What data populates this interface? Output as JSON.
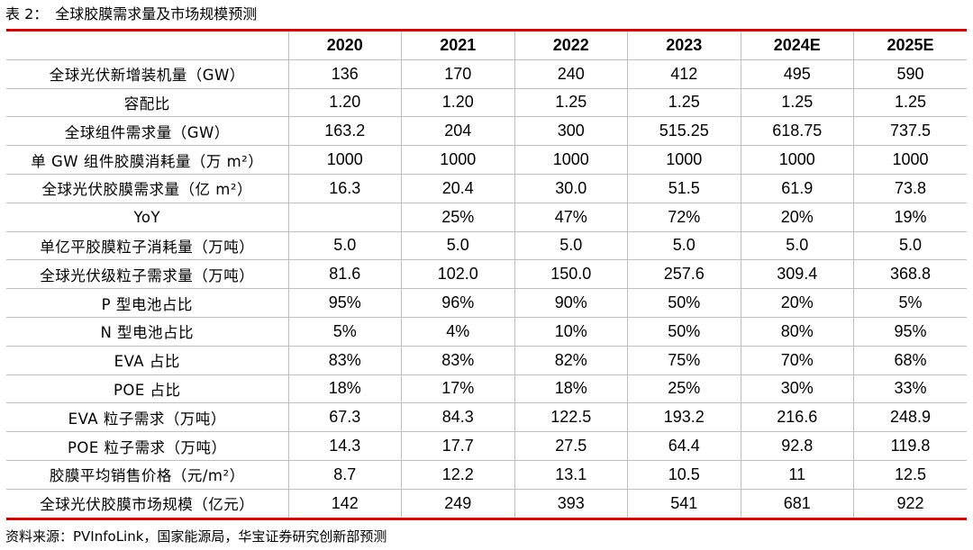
{
  "caption": {
    "label": "表 2：",
    "title": "全球胶膜需求量及市场规模预测"
  },
  "table": {
    "columns": [
      "",
      "2020",
      "2021",
      "2022",
      "2023",
      "2024E",
      "2025E"
    ],
    "rows": [
      {
        "label": "全球光伏新增装机量（GW）",
        "values": [
          "136",
          "170",
          "240",
          "412",
          "495",
          "590"
        ]
      },
      {
        "label": "容配比",
        "values": [
          "1.20",
          "1.20",
          "1.25",
          "1.25",
          "1.25",
          "1.25"
        ]
      },
      {
        "label": "全球组件需求量（GW）",
        "values": [
          "163.2",
          "204",
          "300",
          "515.25",
          "618.75",
          "737.5"
        ]
      },
      {
        "label": "单 GW 组件胶膜消耗量（万 m²）",
        "values": [
          "1000",
          "1000",
          "1000",
          "1000",
          "1000",
          "1000"
        ]
      },
      {
        "label": "全球光伏胶膜需求量（亿 m²）",
        "values": [
          "16.3",
          "20.4",
          "30.0",
          "51.5",
          "61.9",
          "73.8"
        ]
      },
      {
        "label": "YoY",
        "values": [
          "",
          "25%",
          "47%",
          "72%",
          "20%",
          "19%"
        ]
      },
      {
        "label": "单亿平胶膜粒子消耗量（万吨）",
        "values": [
          "5.0",
          "5.0",
          "5.0",
          "5.0",
          "5.0",
          "5.0"
        ]
      },
      {
        "label": "全球光伏级粒子需求量（万吨）",
        "values": [
          "81.6",
          "102.0",
          "150.0",
          "257.6",
          "309.4",
          "368.8"
        ]
      },
      {
        "label": "P 型电池占比",
        "values": [
          "95%",
          "96%",
          "90%",
          "50%",
          "20%",
          "5%"
        ]
      },
      {
        "label": "N 型电池占比",
        "values": [
          "5%",
          "4%",
          "10%",
          "50%",
          "80%",
          "95%"
        ]
      },
      {
        "label": "EVA 占比",
        "values": [
          "83%",
          "83%",
          "82%",
          "75%",
          "70%",
          "68%"
        ]
      },
      {
        "label": "POE 占比",
        "values": [
          "18%",
          "17%",
          "18%",
          "25%",
          "30%",
          "33%"
        ]
      },
      {
        "label": "EVA 粒子需求（万吨）",
        "values": [
          "67.3",
          "84.3",
          "122.5",
          "193.2",
          "216.6",
          "248.9"
        ]
      },
      {
        "label": "POE 粒子需求（万吨）",
        "values": [
          "14.3",
          "17.7",
          "27.5",
          "64.4",
          "92.8",
          "119.8"
        ]
      },
      {
        "label": "胶膜平均销售价格（元/m²）",
        "values": [
          "8.7",
          "12.2",
          "13.1",
          "10.5",
          "11",
          "12.5"
        ]
      },
      {
        "label": "全球光伏胶膜市场规模（亿元）",
        "values": [
          "142",
          "249",
          "393",
          "541",
          "681",
          "922"
        ]
      }
    ]
  },
  "source": "资料来源：PVInfoLink，国家能源局，华宝证券研究创新部预测",
  "colors": {
    "rule": "#c00000",
    "grid": "#bfbfbf",
    "text": "#000000"
  }
}
